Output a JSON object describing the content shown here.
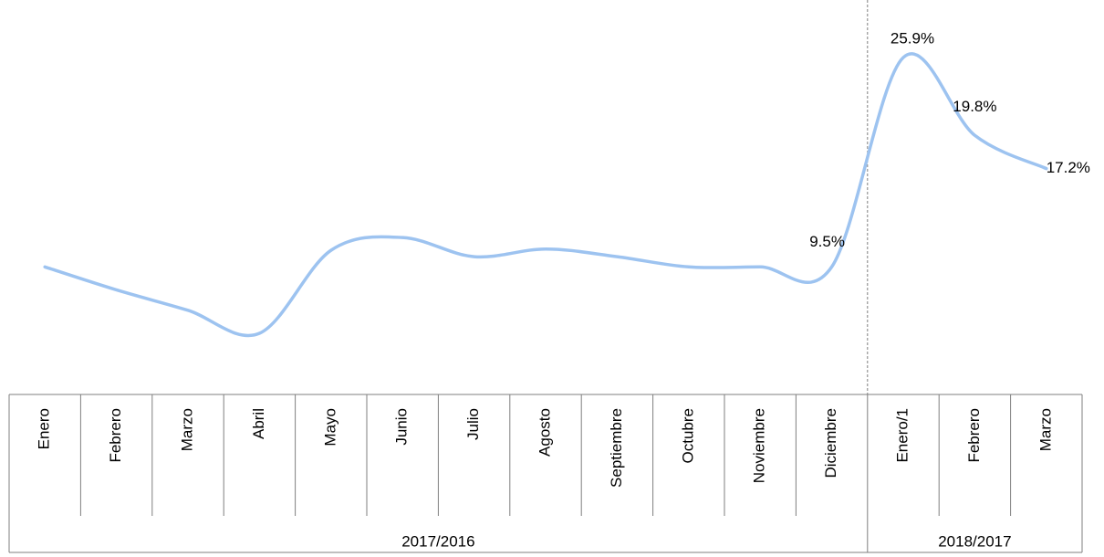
{
  "chart_data": {
    "type": "line",
    "groups": [
      {
        "label": "2017/2016",
        "categories": [
          "Enero",
          "Febrero",
          "Marzo",
          "Abril",
          "Mayo",
          "Junio",
          "Julio",
          "Agosto",
          "Septiembre",
          "Octubre",
          "Noviembre",
          "Diciembre"
        ]
      },
      {
        "label": "2018/2017",
        "categories": [
          "Enero/1",
          "Febrero",
          "Marzo"
        ]
      }
    ],
    "series": [
      {
        "color": "#9dc3f0",
        "values": [
          9.5,
          7.7,
          6.1,
          4.3,
          10.8,
          11.8,
          10.3,
          10.9,
          10.3,
          9.5,
          9.5,
          9.5,
          25.9,
          19.8,
          17.2
        ],
        "value_labels": [
          null,
          null,
          null,
          null,
          null,
          null,
          null,
          null,
          null,
          null,
          null,
          "9.5%",
          "25.9%",
          "19.8%",
          "17.2%"
        ]
      }
    ]
  }
}
